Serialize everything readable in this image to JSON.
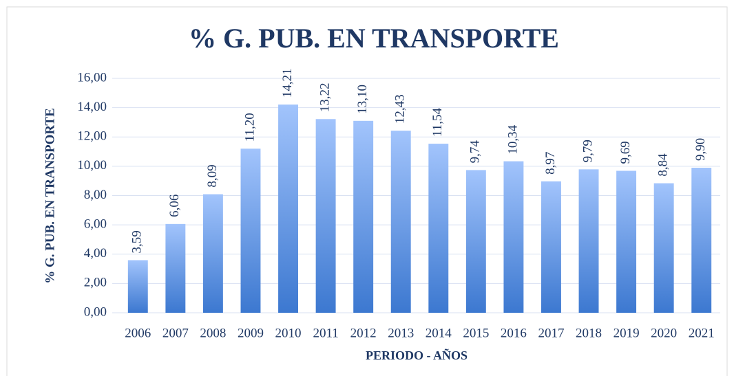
{
  "chart_data": {
    "type": "bar",
    "title": "% G. PUB. EN TRANSPORTE",
    "y_label": "% G. PUB. EN TRANSPORTE",
    "x_label": "PERIODO - AÑOS",
    "categories": [
      "2006",
      "2007",
      "2008",
      "2009",
      "2010",
      "2011",
      "2012",
      "2013",
      "2014",
      "2015",
      "2016",
      "2017",
      "2018",
      "2019",
      "2020",
      "2021"
    ],
    "values": [
      3.59,
      6.06,
      8.09,
      11.2,
      14.21,
      13.22,
      13.1,
      12.43,
      11.54,
      9.74,
      10.34,
      8.97,
      9.79,
      9.69,
      8.84,
      9.9
    ],
    "value_labels": [
      "3,59",
      "6,06",
      "8,09",
      "11,20",
      "14,21",
      "13,22",
      "13,10",
      "12,43",
      "11,54",
      "9,74",
      "10,34",
      "8,97",
      "9,79",
      "9,69",
      "8,84",
      "9,90"
    ],
    "color": [
      "#a2c4fc",
      "#3c78d0"
    ],
    "ylim": [
      0,
      16
    ],
    "yticks": [
      {
        "value": 0,
        "label": "0,00"
      },
      {
        "value": 2,
        "label": "2,00"
      },
      {
        "value": 4,
        "label": "4,00"
      },
      {
        "value": 6,
        "label": "6,00"
      },
      {
        "value": 8,
        "label": "8,00"
      },
      {
        "value": 10,
        "label": "10,00"
      },
      {
        "value": 12,
        "label": "12,00"
      },
      {
        "value": 14,
        "label": "14,00"
      },
      {
        "value": 16,
        "label": "16,00"
      }
    ],
    "grid": true
  }
}
